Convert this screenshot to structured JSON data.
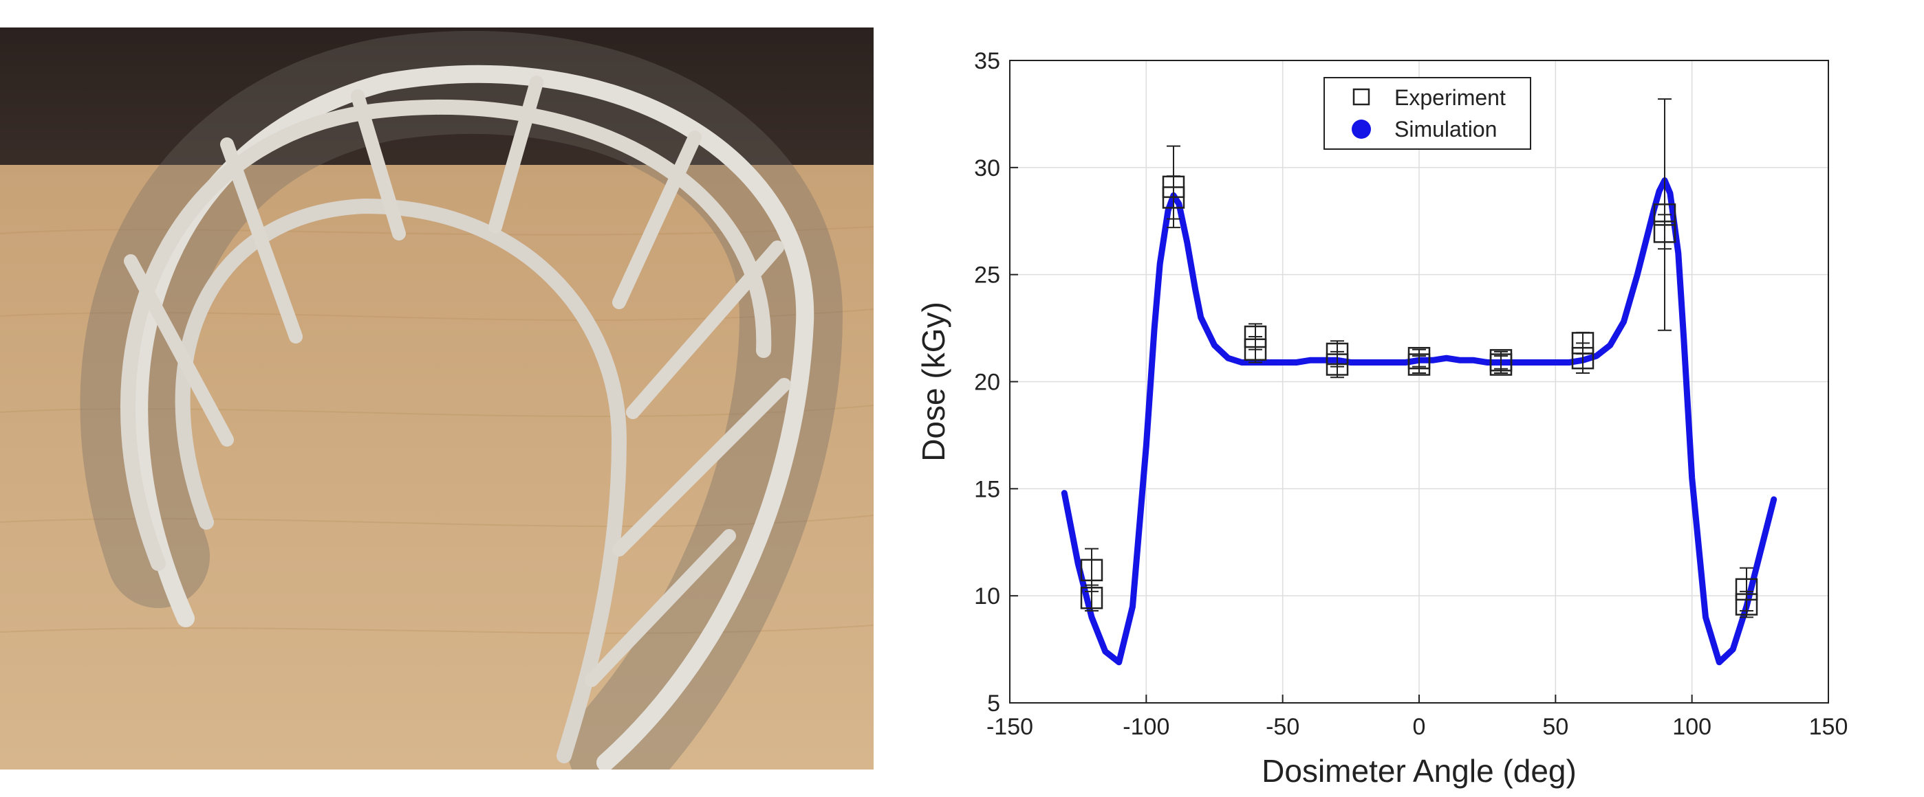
{
  "chart_data": {
    "type": "scatter",
    "title": "",
    "xlabel": "Dosimeter Angle (deg)",
    "ylabel": "Dose (kGy)",
    "xlim": [
      -150,
      150
    ],
    "ylim": [
      5,
      35
    ],
    "xticks": [
      -150,
      -100,
      -50,
      0,
      50,
      100,
      150
    ],
    "yticks": [
      5,
      10,
      15,
      20,
      25,
      30,
      35
    ],
    "grid": true,
    "legend_position": "top-center",
    "series": [
      {
        "name": "Experiment",
        "marker": "open-square",
        "color": "#222222",
        "points": [
          {
            "x": -120,
            "y": 11.2,
            "err": 1.0
          },
          {
            "x": -120,
            "y": 9.9,
            "err": 0.6
          },
          {
            "x": -90,
            "y": 29.1,
            "err": 1.9
          },
          {
            "x": -90,
            "y": 28.6,
            "err": 1.0
          },
          {
            "x": -60,
            "y": 22.1,
            "err": 0.6
          },
          {
            "x": -60,
            "y": 21.5,
            "err": 0.6
          },
          {
            "x": -30,
            "y": 21.3,
            "err": 0.6
          },
          {
            "x": -30,
            "y": 20.8,
            "err": 0.6
          },
          {
            "x": 0,
            "y": 21.1,
            "err": 0.4
          },
          {
            "x": 0,
            "y": 20.8,
            "err": 0.4
          },
          {
            "x": 30,
            "y": 21.0,
            "err": 0.4
          },
          {
            "x": 30,
            "y": 20.8,
            "err": 0.4
          },
          {
            "x": 60,
            "y": 21.8,
            "err": 0.5
          },
          {
            "x": 60,
            "y": 21.1,
            "err": 0.7
          },
          {
            "x": 90,
            "y": 27.8,
            "err": 5.4
          },
          {
            "x": 90,
            "y": 27.0,
            "err": 0.8
          },
          {
            "x": 120,
            "y": 10.3,
            "err": 1.0
          },
          {
            "x": 120,
            "y": 9.6,
            "err": 0.6
          }
        ]
      },
      {
        "name": "Simulation",
        "marker": "filled-circle",
        "color": "#1414e6",
        "x": [
          -130,
          -125,
          -120,
          -115,
          -110,
          -105,
          -100,
          -97,
          -95,
          -92,
          -90,
          -88,
          -85,
          -82,
          -80,
          -75,
          -70,
          -65,
          -60,
          -55,
          -50,
          -45,
          -40,
          -35,
          -30,
          -25,
          -20,
          -15,
          -10,
          -5,
          0,
          5,
          10,
          15,
          20,
          25,
          30,
          35,
          40,
          45,
          50,
          55,
          60,
          65,
          70,
          75,
          80,
          83,
          86,
          88,
          90,
          92,
          95,
          97,
          100,
          105,
          110,
          115,
          120,
          125,
          130
        ],
        "y": [
          14.8,
          11.5,
          9.0,
          7.4,
          6.9,
          9.5,
          17.0,
          22.5,
          25.5,
          28.0,
          28.7,
          28.3,
          26.5,
          24.3,
          23.0,
          21.7,
          21.1,
          20.9,
          20.9,
          20.9,
          20.9,
          20.9,
          21.0,
          21.0,
          21.0,
          20.9,
          20.9,
          20.9,
          20.9,
          20.9,
          21.0,
          21.0,
          21.1,
          21.0,
          21.0,
          20.9,
          20.9,
          20.9,
          20.9,
          20.9,
          20.9,
          20.9,
          21.0,
          21.2,
          21.7,
          22.8,
          25.0,
          26.5,
          28.0,
          28.9,
          29.4,
          28.8,
          26.0,
          22.0,
          15.5,
          9.0,
          6.9,
          7.5,
          9.5,
          12.0,
          14.5
        ]
      }
    ]
  },
  "photo": {
    "wall_color": "#2e2622",
    "table_color": "#c9a57c",
    "film_color": "#dcd8cf"
  }
}
